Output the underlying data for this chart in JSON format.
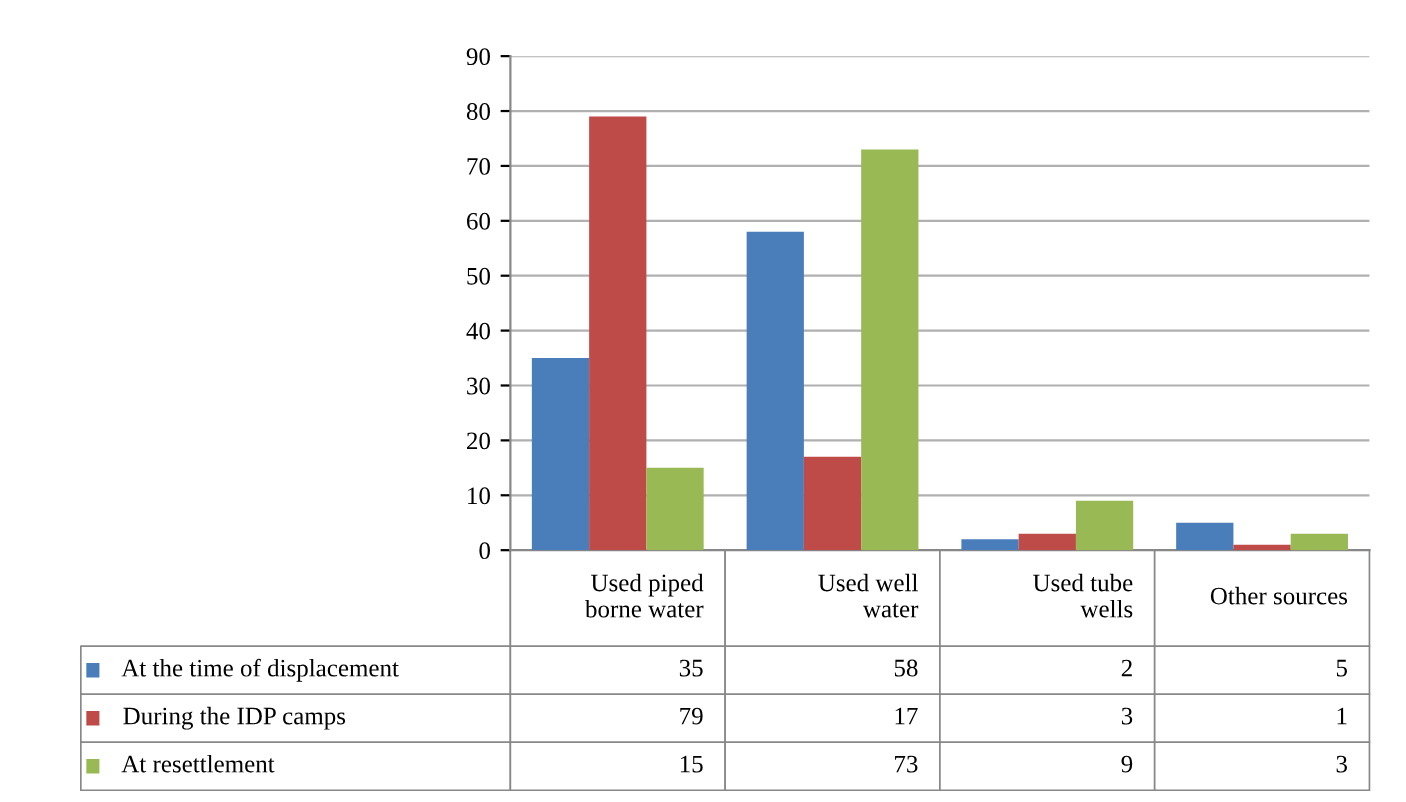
{
  "chart_data": {
    "type": "bar",
    "categories": [
      "Used piped\nborne water",
      "Used well\nwater",
      "Used tube\nwells",
      "Other sources"
    ],
    "series": [
      {
        "name": "At the time of displacement",
        "color": "#4a7ebb",
        "values": [
          35,
          58,
          2,
          5
        ]
      },
      {
        "name": "During the IDP camps",
        "color": "#be4b48",
        "values": [
          79,
          17,
          3,
          1
        ]
      },
      {
        "name": "At resettlement",
        "color": "#98b954",
        "values": [
          15,
          73,
          9,
          3
        ]
      }
    ],
    "ylim": [
      0,
      90
    ],
    "yticks": [
      0,
      10,
      20,
      30,
      40,
      50,
      60,
      70,
      80,
      90
    ],
    "grid": "y",
    "legend": "bottom",
    "data_labels": true
  }
}
